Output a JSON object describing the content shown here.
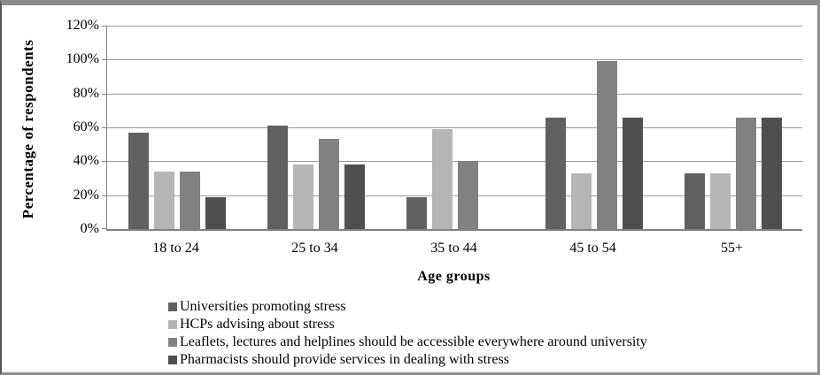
{
  "chart_data": {
    "type": "bar",
    "title": "",
    "categories": [
      "18 to 24",
      "25 to 34",
      "35 to 44",
      "45 to 54",
      "55+"
    ],
    "series": [
      {
        "name": "Universities promoting stress",
        "color": "#616161",
        "values": [
          57,
          61,
          19,
          66,
          33
        ]
      },
      {
        "name": "HCPs advising about stress",
        "color": "#b5b5b5",
        "values": [
          34,
          38,
          59,
          33,
          33
        ]
      },
      {
        "name": "Leaflets, lectures and helplines should be accessible everywhere around university",
        "color": "#818181",
        "values": [
          34,
          53,
          40,
          99,
          66
        ]
      },
      {
        "name": "Pharmacists should provide services in dealing with stress",
        "color": "#4f4f4f",
        "values": [
          19,
          38,
          0,
          66,
          66
        ]
      }
    ],
    "xlabel": "Age groups",
    "ylabel": "Percentage of respondents",
    "ylim": [
      0,
      120
    ],
    "ytick_step": 20,
    "ytick_labels": [
      "0%",
      "20%",
      "40%",
      "60%",
      "80%",
      "100%",
      "120%"
    ],
    "grid": true,
    "legend_position": "bottom-left",
    "colors": {
      "gridline": "#9b9b9b",
      "axis": "#808080",
      "frame": "#8a8a8a",
      "background": "#ffffff",
      "text": "#000000"
    }
  }
}
